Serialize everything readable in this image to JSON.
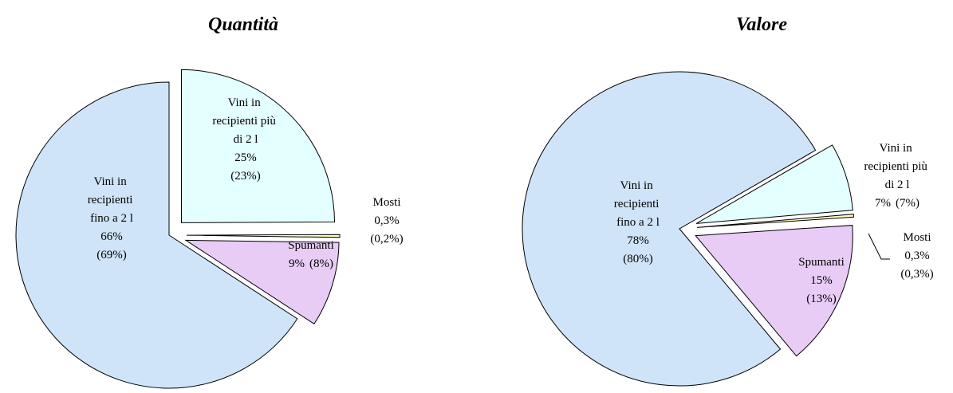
{
  "chart_data": [
    {
      "type": "pie",
      "title": "Quantità",
      "categories": [
        "Vini in recipienti più di 2 l",
        "Mosti",
        "Spumanti",
        "Vini in recipienti fino a 2 l"
      ],
      "values": [
        25,
        0.3,
        9,
        66
      ],
      "value_labels": [
        "25%",
        "0,3%",
        "9%",
        "66%"
      ],
      "prior_values": [
        23,
        0.2,
        8,
        69
      ],
      "prior_value_labels": [
        "(23%)",
        "(0,2%)",
        "(8%)",
        "(69%)"
      ],
      "colors": [
        "#e4ffff",
        "#ffffc4",
        "#e8ccf6",
        "#cfe4f8"
      ]
    },
    {
      "type": "pie",
      "title": "Valore",
      "categories": [
        "Vini in recipienti più di 2 l",
        "Mosti",
        "Spumanti",
        "Vini in recipienti fino a 2 l"
      ],
      "values": [
        7,
        0.3,
        15,
        78
      ],
      "value_labels": [
        "7%",
        "0,3%",
        "15%",
        "78%"
      ],
      "prior_values": [
        7,
        0.3,
        13,
        80
      ],
      "prior_value_labels": [
        "(7%)",
        "(0,3%)",
        "(13%)",
        "(80%)"
      ],
      "colors": [
        "#e4ffff",
        "#ffffc4",
        "#e8ccf6",
        "#cfe4f8"
      ]
    }
  ]
}
